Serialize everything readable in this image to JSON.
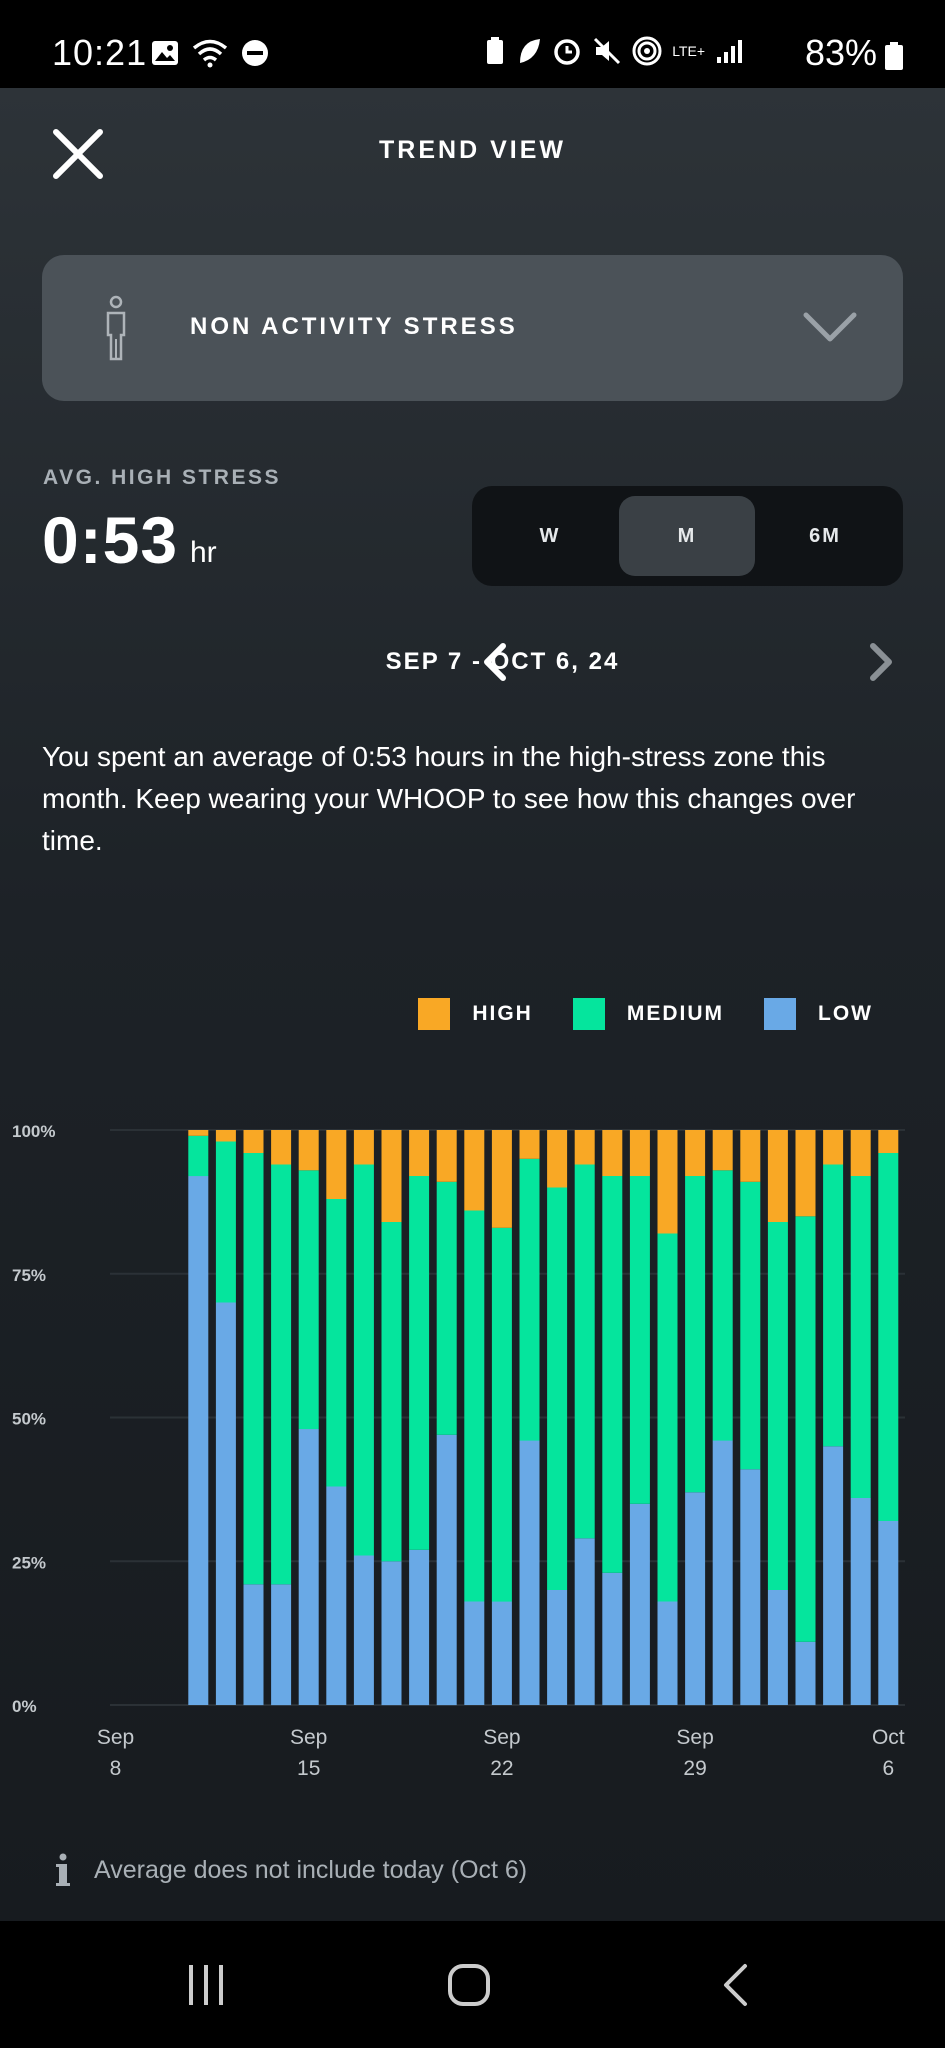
{
  "status_bar": {
    "time": "10:21",
    "battery": "83%",
    "network": "LTE+",
    "left_icons": [
      "gallery-icon",
      "wifi-icon",
      "do-not-disturb-icon"
    ],
    "right_icons": [
      "battery-saver-icon",
      "leaf-icon",
      "alarm-icon",
      "mute-icon",
      "hotspot-icon",
      "signal-icon"
    ]
  },
  "header": {
    "title": "TREND VIEW",
    "close_icon": "close-icon"
  },
  "metric_select": {
    "label": "NON ACTIVITY STRESS",
    "icon": "person-icon"
  },
  "average": {
    "label": "AVG. HIGH STRESS",
    "value": "0:53",
    "unit": "hr"
  },
  "range_toggle": {
    "options": [
      "W",
      "M",
      "6M"
    ],
    "selected": "M"
  },
  "date_nav": {
    "range": "SEP 7 - OCT 6, 24"
  },
  "summary": "You spent an average of 0:53 hours in the high-stress zone this month. Keep wearing your WHOOP to see how this changes over time.",
  "legend": [
    {
      "label": "HIGH",
      "color": "#f9a825"
    },
    {
      "label": "MEDIUM",
      "color": "#05e59d"
    },
    {
      "label": "LOW",
      "color": "#69a9e6"
    }
  ],
  "chart_data": {
    "type": "bar",
    "stacked": true,
    "title": "",
    "xlabel": "",
    "ylabel": "",
    "ylim": [
      0,
      100
    ],
    "yticks": [
      "0%",
      "25%",
      "50%",
      "75%",
      "100%"
    ],
    "x_ticks": [
      {
        "month": "Sep",
        "day": "8"
      },
      {
        "month": "Sep",
        "day": "15"
      },
      {
        "month": "Sep",
        "day": "22"
      },
      {
        "month": "Sep",
        "day": "29"
      },
      {
        "month": "Oct",
        "day": "6"
      }
    ],
    "grid": true,
    "legend_position": "top-right",
    "categories": [
      "Sep 8",
      "Sep 9",
      "Sep 10",
      "Sep 11",
      "Sep 12",
      "Sep 13",
      "Sep 14",
      "Sep 15",
      "Sep 16",
      "Sep 17",
      "Sep 18",
      "Sep 19",
      "Sep 20",
      "Sep 21",
      "Sep 22",
      "Sep 23",
      "Sep 24",
      "Sep 25",
      "Sep 26",
      "Sep 27",
      "Sep 28",
      "Sep 29",
      "Sep 30",
      "Oct 1",
      "Oct 2",
      "Oct 3",
      "Oct 4",
      "Oct 5",
      "Oct 6"
    ],
    "series": [
      {
        "name": "LOW",
        "color": "#69a9e6",
        "values": [
          null,
          null,
          null,
          92,
          70,
          21,
          21,
          48,
          38,
          26,
          25,
          27,
          47,
          18,
          18,
          46,
          20,
          29,
          23,
          35,
          18,
          37,
          46,
          41,
          20,
          11,
          45,
          36,
          32
        ]
      },
      {
        "name": "MEDIUM",
        "color": "#05e59d",
        "values": [
          null,
          null,
          null,
          7,
          28,
          75,
          73,
          45,
          50,
          68,
          59,
          65,
          44,
          68,
          65,
          49,
          70,
          65,
          69,
          57,
          64,
          55,
          47,
          50,
          64,
          74,
          49,
          56,
          64
        ]
      },
      {
        "name": "HIGH",
        "color": "#f9a825",
        "values": [
          null,
          null,
          null,
          1,
          2,
          4,
          6,
          7,
          12,
          6,
          16,
          8,
          9,
          14,
          17,
          5,
          10,
          6,
          8,
          8,
          18,
          8,
          7,
          9,
          16,
          15,
          6,
          8,
          4
        ]
      }
    ]
  },
  "footnote": "Average does not include today (Oct 6)"
}
